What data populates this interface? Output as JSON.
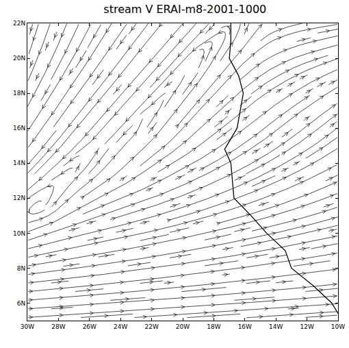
{
  "chart_data": {
    "type": "streamline",
    "title": "stream V ERAI-m8-2001-1000",
    "color": "#000000",
    "xlim": [
      -30,
      -10
    ],
    "ylim": [
      5,
      22
    ],
    "xticks": [
      {
        "value": -30,
        "label": "30W"
      },
      {
        "value": -28,
        "label": "28W"
      },
      {
        "value": -26,
        "label": "26W"
      },
      {
        "value": -24,
        "label": "24W"
      },
      {
        "value": -22,
        "label": "22W"
      },
      {
        "value": -20,
        "label": "20W"
      },
      {
        "value": -18,
        "label": "18W"
      },
      {
        "value": -16,
        "label": "16W"
      },
      {
        "value": -14,
        "label": "14W"
      },
      {
        "value": -12,
        "label": "12W"
      },
      {
        "value": -10,
        "label": "10W"
      }
    ],
    "yticks": [
      {
        "value": 6,
        "label": "6N"
      },
      {
        "value": 8,
        "label": "8N"
      },
      {
        "value": 10,
        "label": "10N"
      },
      {
        "value": 12,
        "label": "12N"
      },
      {
        "value": 14,
        "label": "14N"
      },
      {
        "value": 16,
        "label": "16N"
      },
      {
        "value": 18,
        "label": "18N"
      },
      {
        "value": 20,
        "label": "20N"
      },
      {
        "value": 22,
        "label": "22N"
      }
    ],
    "grid": false,
    "wind": {
      "lon": [
        -30,
        -28,
        -26,
        -24,
        -22,
        -20,
        -18,
        -16,
        -14,
        -12,
        -10
      ],
      "lat": [
        6,
        8,
        10,
        12,
        14,
        16,
        18,
        20,
        22
      ],
      "u": [
        [
          5,
          5,
          5,
          5,
          5,
          5,
          5,
          5,
          5,
          5,
          5
        ],
        [
          5,
          5,
          5,
          5,
          5,
          5,
          5,
          5,
          5,
          5,
          5
        ],
        [
          4.5,
          4.5,
          5,
          5,
          5,
          5,
          5,
          5,
          5,
          5,
          5
        ],
        [
          -3,
          2,
          4,
          4.5,
          4.5,
          4.5,
          4.5,
          4.5,
          4.5,
          4.5,
          4.5
        ],
        [
          -3,
          -3,
          2,
          3,
          4,
          4,
          4,
          4,
          4,
          4,
          4
        ],
        [
          -3,
          -3,
          -3,
          -2.5,
          2.5,
          3,
          3.5,
          3.5,
          3.5,
          3.5,
          3.5
        ],
        [
          -2.5,
          -3,
          -3,
          -3,
          -2.5,
          2.5,
          3,
          3.5,
          3.5,
          3.5,
          3.5
        ],
        [
          -2,
          -2.5,
          -3,
          -3,
          -3,
          -2.5,
          2,
          3,
          3.5,
          3.5,
          3.5
        ],
        [
          -1.5,
          -2,
          -2.5,
          -3,
          -3,
          -3,
          -2.5,
          1,
          3,
          3.5,
          3.5
        ]
      ],
      "v": [
        [
          0.3,
          0.3,
          0.3,
          0.3,
          0.3,
          0.3,
          0.3,
          0.3,
          0.3,
          0.3,
          0.3
        ],
        [
          0.6,
          0.6,
          0.6,
          0.6,
          0.6,
          0.6,
          0.6,
          0.6,
          0.6,
          0.6,
          0.6
        ],
        [
          1.5,
          1.2,
          1,
          1,
          1,
          1,
          1,
          1,
          1,
          1,
          1
        ],
        [
          -2,
          2.5,
          2,
          1.5,
          1.5,
          1.5,
          1.5,
          1.5,
          1.5,
          1.5,
          1.5
        ],
        [
          -3,
          -2.5,
          2.5,
          3,
          2.5,
          2,
          2,
          2,
          2,
          2,
          2
        ],
        [
          -4,
          -3.5,
          -3,
          -2.5,
          3,
          3,
          2.5,
          2.5,
          2.5,
          2.5,
          2.5
        ],
        [
          -4.5,
          -4,
          -3.5,
          -3,
          -2.5,
          3,
          3,
          2.5,
          2,
          2,
          2
        ],
        [
          -5,
          -4.5,
          -4,
          -3.5,
          -3,
          -2.5,
          3,
          2.5,
          1.5,
          1,
          1
        ],
        [
          -5,
          -5,
          -4.5,
          -4,
          -3.5,
          -3,
          -2.5,
          3,
          1,
          0.5,
          0.5
        ]
      ]
    },
    "coastline": {
      "lon": [
        -16.9,
        -16.9,
        -17.0,
        -16.4,
        -16.1,
        -16.3,
        -16.5,
        -17.3,
        -16.9,
        -16.8,
        -16.7,
        -15.6,
        -14.6,
        -13.4,
        -13.0,
        -11.6,
        -10.4,
        -10.0
      ],
      "lat": [
        22.0,
        21.0,
        20.0,
        19.0,
        18.0,
        17.0,
        16.0,
        14.8,
        14.0,
        13.0,
        12.0,
        11.0,
        10.0,
        9.0,
        8.0,
        7.0,
        6.0,
        5.4
      ]
    }
  }
}
